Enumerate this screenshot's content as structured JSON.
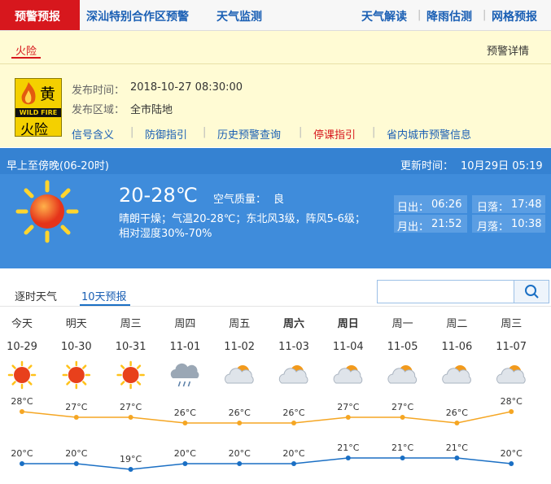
{
  "nav": {
    "active": "预警预报",
    "links": [
      "深汕特别合作区预警",
      "天气监测"
    ],
    "right": [
      "天气解读",
      "降雨估测",
      "网格预报"
    ]
  },
  "warning": {
    "tab": "火险",
    "detail": "预警详情",
    "sign": {
      "level": "黄",
      "caption": "WILD FIRE",
      "label": "火险"
    },
    "time_label": "发布时间：",
    "time": "2018-10-27 08:30:00",
    "area_label": "发布区域：",
    "area": "全市陆地",
    "links": [
      "信号含义",
      "防御指引",
      "历史预警查询",
      "停课指引",
      "省内城市预警信息"
    ]
  },
  "today": {
    "period": "早上至傍晚(06-20时)",
    "update_label": "更新时间：",
    "update": "10月29日 05:19",
    "temp": "20-28℃",
    "aq_label": "空气质量：",
    "aq": "良",
    "desc": [
      "晴朗干燥；气温20-28℃；东北风3级，阵风5-6级；",
      "相对湿度30%-70%"
    ],
    "astro": [
      {
        "label": "日出：",
        "value": "06:26"
      },
      {
        "label": "日落：",
        "value": "17:48"
      },
      {
        "label": "月出：",
        "value": "21:52"
      },
      {
        "label": "月落：",
        "value": "10:38"
      }
    ]
  },
  "tabs": [
    "逐时天气",
    "10天预报"
  ],
  "chart_data": {
    "type": "line",
    "categories": [
      "今天",
      "明天",
      "周三",
      "周四",
      "周五",
      "周六",
      "周日",
      "周一",
      "周二",
      "周三"
    ],
    "dates": [
      "10-29",
      "10-30",
      "10-31",
      "11-01",
      "11-02",
      "11-03",
      "11-04",
      "11-05",
      "11-06",
      "11-07"
    ],
    "icons": [
      "sunny",
      "sunny",
      "sunny",
      "rain",
      "cloudy",
      "cloudy",
      "cloudy",
      "cloudy",
      "cloudy",
      "cloudy"
    ],
    "series": [
      {
        "color": "#f5a623",
        "values": [
          28,
          27,
          27,
          26,
          26,
          26,
          27,
          27,
          26,
          28
        ],
        "value_labels": [
          "28°C",
          "27°C",
          "27°C",
          "26°C",
          "26°C",
          "26°C",
          "27°C",
          "27°C",
          "26°C",
          "28°C"
        ]
      },
      {
        "color": "#1a6fc4",
        "values": [
          20,
          20,
          19,
          20,
          20,
          20,
          21,
          21,
          21,
          20
        ],
        "value_labels": [
          "20°C",
          "20°C",
          "19°C",
          "20°C",
          "20°C",
          "20°C",
          "21°C",
          "21°C",
          "21°C",
          "20°C"
        ]
      }
    ]
  }
}
